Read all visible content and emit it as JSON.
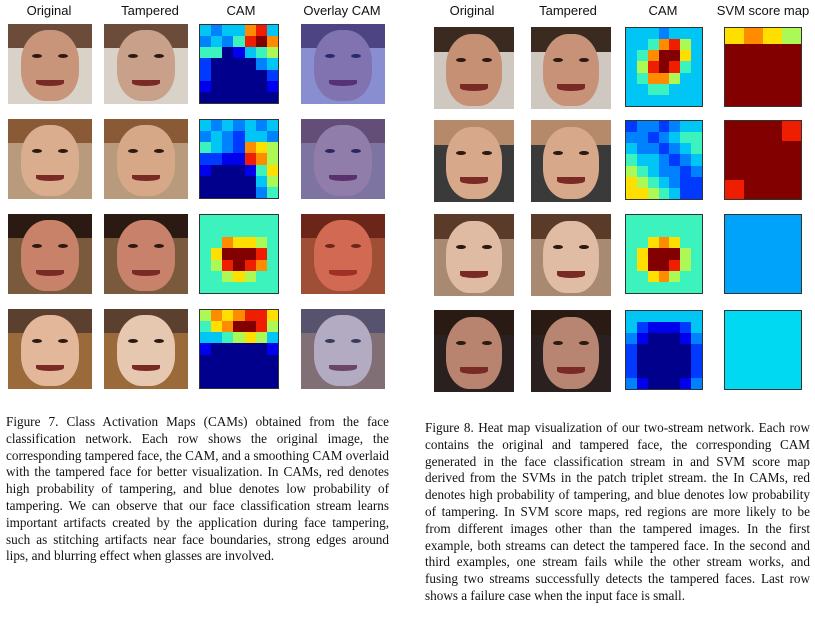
{
  "left_figure": {
    "columns": [
      "Original",
      "Tampered",
      "CAM",
      "Overlay CAM"
    ],
    "caption": "Figure 7. Class Activation Maps (CAMs) obtained from the face classification network. Each row shows the original image, the corresponding tampered face, the CAM, and a smoothing CAM overlaid with the tampered face for better visualization. In CAMs, red denotes high probability of tampering, and blue denotes low probability of tampering. We can observe that our face classification stream learns important artifacts created by the application during face tampering, such as stitching artifacts near face boundaries, strong edges around lips, and blurring effect when glasses are involved.",
    "rows": [
      {
        "original_skin": "#c8957a",
        "tampered_skin": "#c9a08a",
        "hair": "#6b4c3b",
        "bg": "#d9d2c9",
        "overlay_tint": "rgba(40,60,220,0.45)",
        "cam": [
          [
            4,
            3,
            4,
            4,
            8,
            9,
            4
          ],
          [
            3,
            4,
            3,
            5,
            9,
            10,
            8
          ],
          [
            5,
            5,
            0,
            1,
            4,
            5,
            6
          ],
          [
            2,
            0,
            0,
            0,
            0,
            3,
            4
          ],
          [
            2,
            0,
            0,
            0,
            0,
            0,
            2
          ],
          [
            1,
            0,
            0,
            0,
            0,
            0,
            1
          ],
          [
            0,
            0,
            0,
            0,
            0,
            0,
            0
          ]
        ]
      },
      {
        "original_skin": "#d9ad8e",
        "tampered_skin": "#d6a888",
        "hair": "#8a5a36",
        "bg": "#b89a7c",
        "overlay_tint": "rgba(40,60,220,0.4)",
        "cam": [
          [
            4,
            3,
            4,
            3,
            4,
            3,
            4
          ],
          [
            3,
            4,
            3,
            2,
            4,
            4,
            3
          ],
          [
            5,
            4,
            3,
            2,
            8,
            7,
            6
          ],
          [
            2,
            2,
            1,
            1,
            9,
            8,
            6
          ],
          [
            1,
            0,
            0,
            0,
            1,
            5,
            7
          ],
          [
            0,
            0,
            0,
            0,
            0,
            4,
            6
          ],
          [
            0,
            0,
            0,
            0,
            0,
            3,
            5
          ]
        ]
      },
      {
        "original_skin": "#c9826a",
        "tampered_skin": "#c8826b",
        "hair": "#2a1a12",
        "bg": "#7a5a3d",
        "overlay_tint": "rgba(230,60,40,0.35)",
        "cam": [
          [
            5,
            5,
            5,
            5,
            5,
            5,
            5
          ],
          [
            5,
            5,
            5,
            5,
            5,
            5,
            5
          ],
          [
            5,
            5,
            8,
            7,
            7,
            6,
            5
          ],
          [
            5,
            7,
            10,
            10,
            10,
            9,
            5
          ],
          [
            5,
            6,
            9,
            10,
            9,
            8,
            5
          ],
          [
            5,
            5,
            6,
            7,
            6,
            5,
            5
          ],
          [
            5,
            5,
            5,
            5,
            5,
            5,
            5
          ]
        ]
      },
      {
        "original_skin": "#e2b79a",
        "tampered_skin": "#e6c7b0",
        "hair": "#5b4030",
        "bg": "#9a6a3a",
        "overlay_tint": "rgba(80,120,230,0.35)",
        "cam": [
          [
            6,
            8,
            7,
            8,
            9,
            9,
            7
          ],
          [
            5,
            7,
            8,
            10,
            10,
            9,
            6
          ],
          [
            4,
            4,
            5,
            6,
            7,
            6,
            4
          ],
          [
            1,
            0,
            0,
            0,
            0,
            0,
            1
          ],
          [
            0,
            0,
            0,
            0,
            0,
            0,
            0
          ],
          [
            0,
            0,
            0,
            0,
            0,
            0,
            0
          ],
          [
            0,
            0,
            0,
            0,
            0,
            0,
            0
          ]
        ]
      }
    ]
  },
  "right_figure": {
    "columns": [
      "Original",
      "Tampered",
      "CAM",
      "SVM score map"
    ],
    "caption": "Figure 8. Heat map visualization of our two-stream network. Each row contains the original and tampered face, the corresponding CAM generated in the face classification stream in and SVM score map derived from the SVMs in the patch triplet stream.  the In CAMs, red denotes high probability of tampering, and blue denotes low probability of tampering. In SVM score maps, red regions are more likely to be from different images other than the tampered images. In the first example, both streams can detect the tampered face. In the second and third examples, one stream fails while the other stream works, and fusing two streams successfully detects the tampered faces. Last row shows a failure case when the input face is small.",
    "rows": [
      {
        "original_skin": "#c69074",
        "tampered_skin": "#c79278",
        "hair": "#3a2a20",
        "bg": "#cfc8c0",
        "cam": [
          [
            4,
            4,
            4,
            3,
            4,
            4,
            4
          ],
          [
            4,
            4,
            5,
            8,
            9,
            6,
            4
          ],
          [
            4,
            5,
            8,
            10,
            10,
            7,
            4
          ],
          [
            4,
            6,
            9,
            10,
            9,
            5,
            4
          ],
          [
            4,
            5,
            8,
            8,
            6,
            4,
            4
          ],
          [
            4,
            4,
            5,
            5,
            4,
            4,
            4
          ],
          [
            4,
            4,
            4,
            4,
            4,
            4,
            4
          ]
        ],
        "svm_rows": 5,
        "svm_cols": 4,
        "svm": [
          [
            7,
            8,
            7,
            6
          ],
          [
            10,
            10,
            10,
            10
          ],
          [
            10,
            10,
            10,
            10
          ],
          [
            10,
            10,
            10,
            10
          ],
          [
            10,
            10,
            10,
            10
          ]
        ]
      },
      {
        "original_skin": "#d8a88a",
        "tampered_skin": "#d8a88a",
        "hair": "#b58a6a",
        "bg": "#3a3a3a",
        "cam": [
          [
            2,
            3,
            3,
            2,
            3,
            4,
            4
          ],
          [
            3,
            3,
            2,
            3,
            4,
            5,
            5
          ],
          [
            4,
            3,
            3,
            2,
            3,
            4,
            5
          ],
          [
            5,
            4,
            4,
            3,
            2,
            3,
            4
          ],
          [
            6,
            5,
            4,
            3,
            3,
            2,
            3
          ],
          [
            7,
            6,
            5,
            4,
            3,
            2,
            2
          ],
          [
            7,
            7,
            6,
            5,
            4,
            2,
            2
          ]
        ],
        "svm_rows": 4,
        "svm_cols": 4,
        "svm": [
          [
            10,
            10,
            10,
            9
          ],
          [
            10,
            10,
            10,
            10
          ],
          [
            10,
            10,
            10,
            10
          ],
          [
            9,
            10,
            10,
            10
          ]
        ]
      },
      {
        "original_skin": "#e0bba3",
        "tampered_skin": "#e0bca5",
        "hair": "#5a3a28",
        "bg": "#a88a72",
        "cam": [
          [
            5,
            5,
            5,
            5,
            5,
            5,
            5
          ],
          [
            5,
            5,
            5,
            5,
            5,
            5,
            5
          ],
          [
            5,
            5,
            7,
            8,
            7,
            5,
            5
          ],
          [
            5,
            7,
            10,
            10,
            10,
            6,
            5
          ],
          [
            5,
            7,
            10,
            10,
            9,
            6,
            5
          ],
          [
            5,
            5,
            7,
            8,
            6,
            5,
            5
          ],
          [
            5,
            5,
            5,
            5,
            5,
            5,
            5
          ]
        ],
        "svm_rows": 1,
        "svm_cols": 1,
        "svm": [
          [
            3.5
          ]
        ]
      },
      {
        "original_skin": "#b88470",
        "tampered_skin": "#b88572",
        "hair": "#2a1a14",
        "bg": "#2a2020",
        "cam": [
          [
            4,
            4,
            4,
            4,
            4,
            4,
            4
          ],
          [
            4,
            2,
            1,
            1,
            1,
            2,
            4
          ],
          [
            3,
            1,
            0,
            0,
            0,
            1,
            3
          ],
          [
            2,
            0,
            0,
            0,
            0,
            0,
            2
          ],
          [
            2,
            0,
            0,
            0,
            0,
            0,
            2
          ],
          [
            2,
            0,
            0,
            0,
            0,
            0,
            2
          ],
          [
            3,
            1,
            0,
            0,
            0,
            1,
            3
          ]
        ],
        "svm_rows": 1,
        "svm_cols": 1,
        "svm": [
          [
            4.3
          ]
        ]
      }
    ]
  }
}
